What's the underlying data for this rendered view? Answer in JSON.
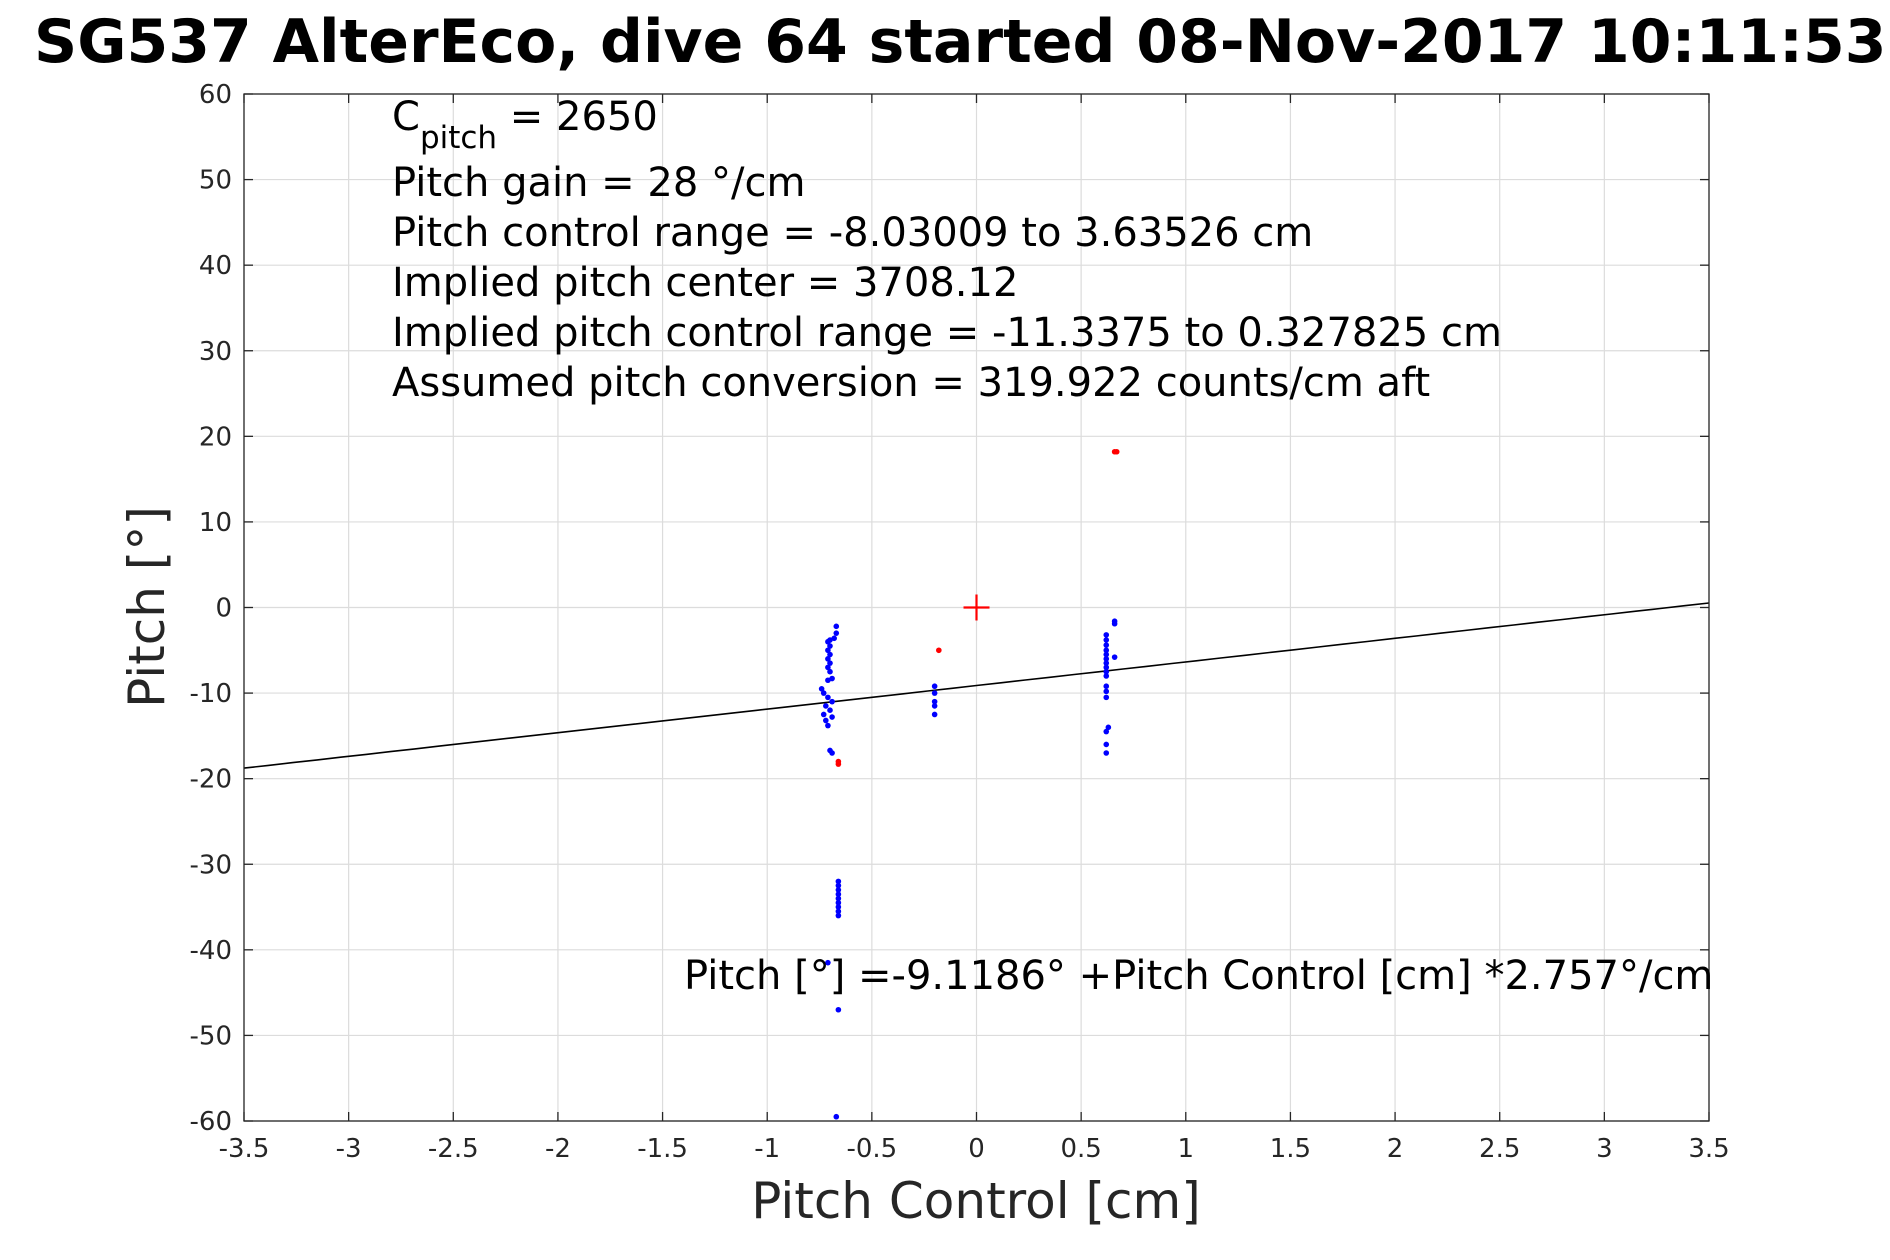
{
  "chart_data": {
    "type": "scatter",
    "title": "SG537 AlterEco, dive 64 started 08-Nov-2017 10:11:53",
    "xlabel": "Pitch Control [cm]",
    "ylabel": "Pitch [°]",
    "xlim": [
      -3.5,
      3.5
    ],
    "ylim": [
      -60,
      60
    ],
    "xticks": [
      -3.5,
      -3,
      -2.5,
      -2,
      -1.5,
      -1,
      -0.5,
      0,
      0.5,
      1,
      1.5,
      2,
      2.5,
      3,
      3.5
    ],
    "yticks": [
      -60,
      -50,
      -40,
      -30,
      -20,
      -10,
      0,
      10,
      20,
      30,
      40,
      50,
      60
    ],
    "xtick_labels": [
      "-3.5",
      "-3",
      "-2.5",
      "-2",
      "-1.5",
      "-1",
      "-0.5",
      "0",
      "0.5",
      "1",
      "1.5",
      "2",
      "2.5",
      "3",
      "3.5"
    ],
    "ytick_labels": [
      "-60",
      "-50",
      "-40",
      "-30",
      "-20",
      "-10",
      "0",
      "10",
      "20",
      "30",
      "40",
      "50",
      "60"
    ],
    "grid": true,
    "series": [
      {
        "color": "#0000ff",
        "marker": "dot",
        "points": [
          [
            -0.71,
            -4.0
          ],
          [
            -0.7,
            -4.5
          ],
          [
            -0.71,
            -5.0
          ],
          [
            -0.7,
            -5.5
          ],
          [
            -0.71,
            -6.0
          ],
          [
            -0.7,
            -6.5
          ],
          [
            -0.71,
            -7.0
          ],
          [
            -0.7,
            -7.5
          ],
          [
            -0.71,
            -8.5
          ],
          [
            -0.69,
            -8.3
          ],
          [
            -0.7,
            -3.8
          ],
          [
            -0.67,
            -2.2
          ],
          [
            -0.67,
            -3.0
          ],
          [
            -0.68,
            -3.6
          ],
          [
            -0.69,
            -11.0
          ],
          [
            -0.71,
            -10.5
          ],
          [
            -0.72,
            -11.5
          ],
          [
            -0.7,
            -12.0
          ],
          [
            -0.73,
            -12.5
          ],
          [
            -0.69,
            -12.8
          ],
          [
            -0.72,
            -13.2
          ],
          [
            -0.71,
            -13.8
          ],
          [
            -0.7,
            -16.7
          ],
          [
            -0.69,
            -17.0
          ],
          [
            -0.74,
            -9.5
          ],
          [
            -0.73,
            -10.0
          ],
          [
            -0.66,
            -32.0
          ],
          [
            -0.66,
            -32.5
          ],
          [
            -0.66,
            -33.0
          ],
          [
            -0.66,
            -33.5
          ],
          [
            -0.66,
            -34.0
          ],
          [
            -0.66,
            -34.5
          ],
          [
            -0.66,
            -35.0
          ],
          [
            -0.66,
            -35.5
          ],
          [
            -0.66,
            -36.0
          ],
          [
            -0.71,
            -41.5
          ],
          [
            -0.66,
            -47.0
          ],
          [
            -0.67,
            -59.5
          ],
          [
            -0.2,
            -9.2
          ],
          [
            -0.2,
            -10.0
          ],
          [
            -0.2,
            -11.0
          ],
          [
            -0.2,
            -11.5
          ],
          [
            -0.2,
            -12.5
          ],
          [
            0.62,
            -3.2
          ],
          [
            0.62,
            -3.8
          ],
          [
            0.62,
            -4.4
          ],
          [
            0.62,
            -5.0
          ],
          [
            0.62,
            -5.5
          ],
          [
            0.62,
            -6.0
          ],
          [
            0.62,
            -6.5
          ],
          [
            0.62,
            -7.0
          ],
          [
            0.62,
            -7.5
          ],
          [
            0.62,
            -8.0
          ],
          [
            0.62,
            -9.2
          ],
          [
            0.62,
            -9.8
          ],
          [
            0.62,
            -10.5
          ],
          [
            0.63,
            -14.0
          ],
          [
            0.62,
            -14.5
          ],
          [
            0.62,
            -16.0
          ],
          [
            0.62,
            -17.0
          ],
          [
            0.66,
            -1.6
          ],
          [
            0.66,
            -1.9
          ],
          [
            0.66,
            -5.8
          ]
        ]
      },
      {
        "color": "#ff0000",
        "marker": "dot",
        "points": [
          [
            0.67,
            18.2
          ],
          [
            0.66,
            18.2
          ],
          [
            -0.18,
            -5.0
          ],
          [
            -0.66,
            -18.0
          ],
          [
            -0.66,
            -18.3
          ]
        ]
      },
      {
        "color": "#ff0000",
        "marker": "plus",
        "points": [
          [
            0.0,
            0.0
          ]
        ]
      }
    ],
    "fit_line": {
      "intercept": -9.1186,
      "slope": 2.757,
      "color": "#000000",
      "x_range": [
        -3.5,
        3.5
      ]
    },
    "annotations": {
      "c_pitch_prefix": "C",
      "c_pitch_sub": "pitch",
      "c_pitch_value": " = 2650",
      "gain": "Pitch gain = 28 °/cm",
      "range": "Pitch control range = -8.03009 to 3.63526 cm",
      "center": "Implied pitch center = 3708.12",
      "implied_range": "Implied pitch control range = -11.3375 to 0.327825 cm",
      "conversion": "Assumed pitch conversion = 319.922 counts/cm aft",
      "fit_equation": "Pitch [°] =-9.1186° +Pitch Control [cm] *2.757°/cm"
    }
  }
}
